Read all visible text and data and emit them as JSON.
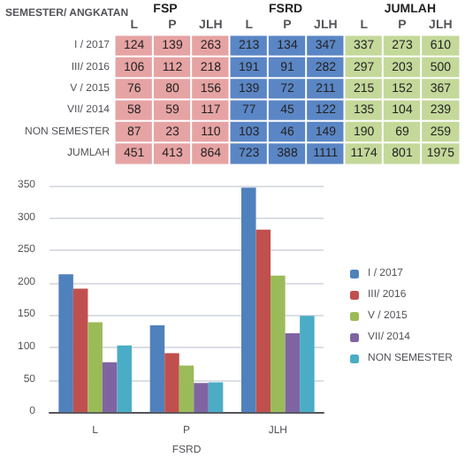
{
  "chart_data": [
    {
      "type": "heatmap",
      "ylabel": "SEMESTER/ ANGKATAN",
      "annotations": [
        "FSP",
        "FSRD",
        "JUMLAH"
      ],
      "categories": [
        "L",
        "P",
        "JLH",
        "L",
        "P",
        "JLH",
        "L",
        "P",
        "JLH"
      ],
      "y_categories": [
        "I / 2017",
        "III/ 2016",
        "V / 2015",
        "VII/ 2014",
        "NON SEMESTER",
        "JUMLAH"
      ],
      "colors": [
        "#e6a3a3",
        "#e6a3a3",
        "#e6a3a3",
        "#5b86c5",
        "#5b86c5",
        "#5b86c5",
        "#c4d89a",
        "#c4d89a",
        "#c4d89a"
      ],
      "cells": [
        [
          124,
          139,
          263,
          213,
          134,
          347,
          337,
          273,
          610
        ],
        [
          106,
          112,
          218,
          191,
          91,
          282,
          297,
          203,
          500
        ],
        [
          76,
          80,
          156,
          139,
          72,
          211,
          215,
          152,
          367
        ],
        [
          58,
          59,
          117,
          77,
          45,
          122,
          135,
          104,
          239
        ],
        [
          87,
          23,
          110,
          103,
          46,
          149,
          190,
          69,
          259
        ],
        [
          451,
          413,
          864,
          723,
          388,
          1111,
          1174,
          801,
          1975
        ]
      ],
      "data_labels": true
    },
    {
      "type": "bar",
      "categories": [
        "L",
        "P",
        "JLH"
      ],
      "xlabel": "FSRD",
      "series": [
        {
          "name": "I / 2017",
          "color": "#4f81bd",
          "values": [
            213,
            134,
            347
          ]
        },
        {
          "name": "III/ 2016",
          "color": "#c0504d",
          "values": [
            191,
            91,
            282
          ]
        },
        {
          "name": "V / 2015",
          "color": "#9bbb59",
          "values": [
            139,
            72,
            211
          ]
        },
        {
          "name": "VII/ 2014",
          "color": "#8064a2",
          "values": [
            77,
            45,
            122
          ]
        },
        {
          "name": "NON SEMESTER",
          "color": "#4bacc6",
          "values": [
            103,
            46,
            149
          ]
        }
      ],
      "ylim": [
        0,
        350
      ],
      "yticks": [
        0,
        50,
        100,
        150,
        200,
        250,
        300,
        350
      ],
      "grid": "y",
      "legend": "right"
    }
  ]
}
